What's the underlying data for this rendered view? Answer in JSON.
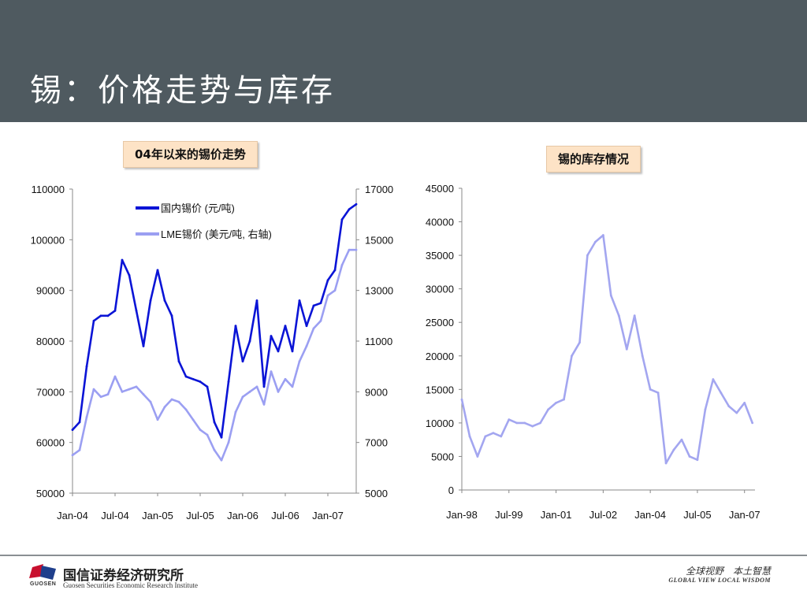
{
  "slide": {
    "title": "锡：价格走势与库存"
  },
  "footer": {
    "brand_short": "GUOSEN",
    "company_cn": "国信证券经济研究所",
    "company_en": "Guosen Securities Economic Research Institute",
    "slogan_cn": "全球视野　本土智慧",
    "slogan_en": "GLOBAL VIEW   LOCAL WISDOM"
  },
  "colors": {
    "header_bg": "#4f5a60",
    "domestic_series": "#0a14d6",
    "lme_series": "#9b9ff2",
    "inventory_series": "#a3a6f0",
    "caption_bg": "#fde3c6"
  },
  "chart_data": [
    {
      "type": "line",
      "title": "04年以来的锡价走势",
      "x_ticks": [
        "Jan-04",
        "Jul-04",
        "Jan-05",
        "Jul-05",
        "Jan-06",
        "Jul-06",
        "Jan-07"
      ],
      "xlim": [
        "2004-01",
        "2007-05"
      ],
      "ylim_left": [
        50000,
        110000
      ],
      "y_ticks_left": [
        "110000",
        "100000",
        "90000",
        "80000",
        "70000",
        "60000",
        "50000"
      ],
      "ylim_right": [
        5000,
        17000
      ],
      "y_ticks_right": [
        "17000",
        "15000",
        "13000",
        "11000",
        "9000",
        "7000",
        "5000"
      ],
      "legend_position": "top-center",
      "series": [
        {
          "name": "国内锡价 (元/吨)",
          "axis": "left",
          "x": [
            "2004-01",
            "2004-02",
            "2004-03",
            "2004-04",
            "2004-05",
            "2004-06",
            "2004-07",
            "2004-08",
            "2004-09",
            "2004-10",
            "2004-11",
            "2004-12",
            "2005-01",
            "2005-02",
            "2005-03",
            "2005-04",
            "2005-05",
            "2005-06",
            "2005-07",
            "2005-08",
            "2005-09",
            "2005-10",
            "2005-11",
            "2005-12",
            "2006-01",
            "2006-02",
            "2006-03",
            "2006-04",
            "2006-05",
            "2006-06",
            "2006-07",
            "2006-08",
            "2006-09",
            "2006-10",
            "2006-11",
            "2006-12",
            "2007-01",
            "2007-02",
            "2007-03",
            "2007-04",
            "2007-05"
          ],
          "values": [
            62500,
            64000,
            75000,
            84000,
            85000,
            85000,
            86000,
            96000,
            93000,
            86000,
            79000,
            88000,
            94000,
            88000,
            85000,
            76000,
            73000,
            72500,
            72000,
            71000,
            64000,
            61000,
            72000,
            83000,
            76000,
            80000,
            88000,
            71000,
            81000,
            78000,
            83000,
            78000,
            88000,
            83000,
            87000,
            87500,
            92000,
            94000,
            104000,
            106000,
            107000
          ]
        },
        {
          "name": "LME锡价 (美元/吨, 右轴)",
          "axis": "right",
          "x": [
            "2004-01",
            "2004-02",
            "2004-03",
            "2004-04",
            "2004-05",
            "2004-06",
            "2004-07",
            "2004-08",
            "2004-09",
            "2004-10",
            "2004-11",
            "2004-12",
            "2005-01",
            "2005-02",
            "2005-03",
            "2005-04",
            "2005-05",
            "2005-06",
            "2005-07",
            "2005-08",
            "2005-09",
            "2005-10",
            "2005-11",
            "2005-12",
            "2006-01",
            "2006-02",
            "2006-03",
            "2006-04",
            "2006-05",
            "2006-06",
            "2006-07",
            "2006-08",
            "2006-09",
            "2006-10",
            "2006-11",
            "2006-12",
            "2007-01",
            "2007-02",
            "2007-03",
            "2007-04",
            "2007-05"
          ],
          "values": [
            6500,
            6700,
            8000,
            9100,
            8800,
            8900,
            9600,
            9000,
            9100,
            9200,
            8900,
            8600,
            7900,
            8400,
            8700,
            8600,
            8300,
            7900,
            7500,
            7300,
            6700,
            6300,
            7000,
            8200,
            8800,
            9000,
            9200,
            8500,
            9800,
            9000,
            9500,
            9200,
            10200,
            10800,
            11500,
            11800,
            12800,
            13000,
            14000,
            14600,
            14600
          ]
        }
      ]
    },
    {
      "type": "line",
      "title": "锡的库存情况",
      "x_ticks": [
        "Jan-98",
        "Jul-99",
        "Jan-01",
        "Jul-02",
        "Jan-04",
        "Jul-05",
        "Jan-07"
      ],
      "xlim": [
        "1998-01",
        "2007-05"
      ],
      "ylim": [
        0,
        45000
      ],
      "y_ticks": [
        "45000",
        "40000",
        "35000",
        "30000",
        "25000",
        "20000",
        "15000",
        "10000",
        "5000",
        "0"
      ],
      "series": [
        {
          "axis": "left",
          "x": [
            "1998-01",
            "1998-04",
            "1998-07",
            "1998-10",
            "1999-01",
            "1999-04",
            "1999-07",
            "1999-10",
            "2000-01",
            "2000-04",
            "2000-07",
            "2000-10",
            "2001-01",
            "2001-04",
            "2001-07",
            "2001-10",
            "2002-01",
            "2002-04",
            "2002-07",
            "2002-10",
            "2003-01",
            "2003-04",
            "2003-07",
            "2003-10",
            "2004-01",
            "2004-04",
            "2004-07",
            "2004-10",
            "2005-01",
            "2005-04",
            "2005-07",
            "2005-10",
            "2006-01",
            "2006-04",
            "2006-07",
            "2006-10",
            "2007-01",
            "2007-04"
          ],
          "values": [
            13500,
            8000,
            5000,
            8000,
            8500,
            8000,
            10500,
            10000,
            10000,
            9500,
            10000,
            12000,
            13000,
            13500,
            20000,
            22000,
            35000,
            37000,
            38000,
            29000,
            26000,
            21000,
            26000,
            20000,
            15000,
            14500,
            4000,
            6000,
            7500,
            5000,
            4500,
            12000,
            16500,
            14500,
            12500,
            11500,
            13000,
            10000
          ]
        }
      ]
    }
  ]
}
